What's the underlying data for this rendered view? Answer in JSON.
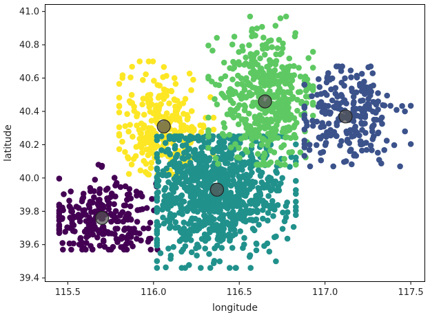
{
  "chart_data": {
    "type": "scatter",
    "title": "",
    "xlabel": "longitude",
    "ylabel": "latitude",
    "xlim": [
      115.37,
      117.58
    ],
    "ylim": [
      39.38,
      41.04
    ],
    "xticks": [
      "115.5",
      "116.0",
      "116.5",
      "117.0",
      "117.5"
    ],
    "yticks": [
      "39.4",
      "39.6",
      "39.8",
      "40.0",
      "40.2",
      "40.4",
      "40.6",
      "40.8",
      "41.0"
    ],
    "grid": false,
    "legend": "none",
    "clusters": [
      {
        "color": "#440154",
        "centroid": [
          115.7,
          39.76
        ],
        "extent": {
          "x": [
            115.45,
            116.1
          ],
          "y": [
            39.57,
            40.08
          ]
        },
        "approx_points": 260
      },
      {
        "color": "#fde725",
        "centroid": [
          116.06,
          40.31
        ],
        "extent": {
          "x": [
            115.8,
            116.35
          ],
          "y": [
            40.02,
            40.7
          ]
        },
        "approx_points": 280
      },
      {
        "color": "#21918c",
        "centroid": [
          116.37,
          39.93
        ],
        "extent": {
          "x": [
            116.02,
            116.83
          ],
          "y": [
            39.46,
            40.25
          ]
        },
        "approx_points": 950
      },
      {
        "color": "#5ec962",
        "centroid": [
          116.65,
          40.46
        ],
        "extent": {
          "x": [
            116.32,
            116.93
          ],
          "y": [
            40.08,
            40.97
          ]
        },
        "approx_points": 460
      },
      {
        "color": "#3b528b",
        "centroid": [
          117.12,
          40.37
        ],
        "extent": {
          "x": [
            116.88,
            117.5
          ],
          "y": [
            40.07,
            40.67
          ]
        },
        "approx_points": 240
      }
    ],
    "centroid_color": "#555555"
  }
}
